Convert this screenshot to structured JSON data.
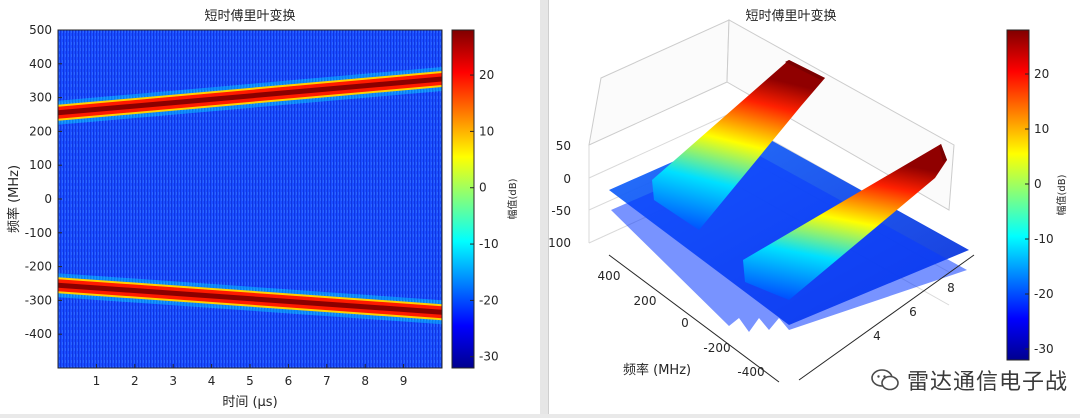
{
  "chart_data": [
    {
      "type": "heatmap",
      "title": "短时傅里叶变换",
      "xlabel": "时间 (μs)",
      "ylabel": "频率 (MHz)",
      "xlim": [
        0,
        10
      ],
      "ylim": [
        -500,
        500
      ],
      "xticks": [
        1,
        2,
        3,
        4,
        5,
        6,
        7,
        8,
        9
      ],
      "yticks": [
        500,
        400,
        300,
        200,
        100,
        0,
        -100,
        -200,
        -300,
        -400
      ],
      "colorbar": {
        "label": "幅值(dB)",
        "ticks": [
          20,
          10,
          0,
          -10,
          -20,
          -30
        ],
        "range": [
          -32,
          28
        ]
      },
      "series": [
        {
          "x": [
            0,
            10
          ],
          "y": [
            255,
            355
          ]
        },
        {
          "x": [
            0,
            10
          ],
          "y": [
            -255,
            -335
          ]
        }
      ]
    },
    {
      "type": "surface",
      "title": "短时傅里叶变换",
      "xlabel": "",
      "ylabel": "频率 (MHz)",
      "zlim": [
        -100,
        50
      ],
      "zticks": [
        50,
        0,
        -50,
        -100
      ],
      "freq_ticks": [
        400,
        200,
        0,
        -200,
        -400
      ],
      "time_ticks": [
        4,
        6,
        8
      ],
      "colorbar": {
        "label": "幅值(dB)",
        "ticks": [
          20,
          10,
          0,
          -10,
          -20,
          -30
        ],
        "range": [
          -32,
          28
        ]
      },
      "ridges": [
        {
          "peak_db": 28,
          "freq_start": 255,
          "freq_end": 355
        },
        {
          "peak_db": 28,
          "freq_start": -255,
          "freq_end": -335
        }
      ]
    }
  ],
  "watermark": {
    "text": "雷达通信电子战"
  }
}
